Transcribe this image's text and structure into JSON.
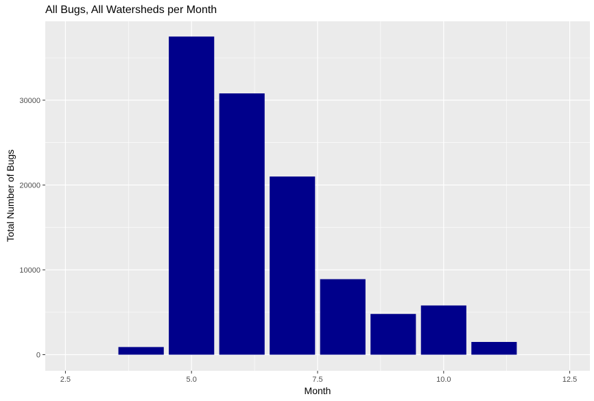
{
  "chart_data": {
    "type": "bar",
    "title": "All Bugs, All Watersheds per Month",
    "xlabel": "Month",
    "ylabel": "Total Number of Bugs",
    "x": [
      4,
      5,
      6,
      7,
      8,
      9,
      10,
      11
    ],
    "values": [
      900,
      37500,
      30800,
      21000,
      8900,
      4800,
      5800,
      1500
    ],
    "xlim": [
      2.1,
      12.9
    ],
    "ylim": [
      -1900,
      39300
    ],
    "xticks": [
      2.5,
      5.0,
      7.5,
      10.0,
      12.5
    ],
    "xtick_labels": [
      "2.5",
      "5.0",
      "7.5",
      "10.0",
      "12.5"
    ],
    "yticks": [
      0,
      10000,
      20000,
      30000
    ],
    "ytick_labels": [
      "0",
      "10000",
      "20000",
      "30000"
    ],
    "bar_color": "#00008B",
    "panel_background": "#EBEBEB",
    "grid": true,
    "legend": "none"
  }
}
